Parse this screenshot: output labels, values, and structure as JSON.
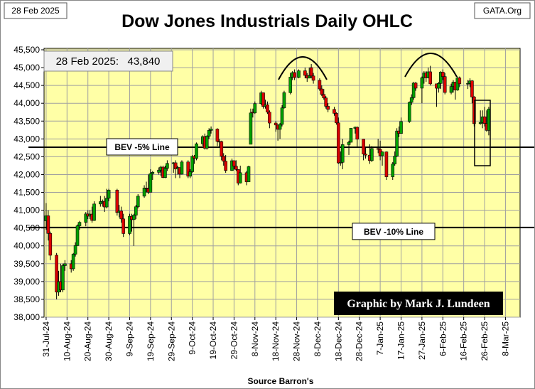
{
  "date": "28 Feb 2025",
  "site": "GATA.Org",
  "chart_data": {
    "type": "candlestick",
    "title": "Dow Jones Industrials Daily OHLC",
    "annotation": "28 Feb 2025:   43,840",
    "credit": "Graphic by Mark J. Lundeen",
    "source": "Source Barron's",
    "up_color": "#00a000",
    "down_color": "#dd0000",
    "grid": true,
    "reference_lines": [
      {
        "label": "BEV -5% Line",
        "value": 42767
      },
      {
        "label": "BEV -10% Line",
        "value": 40516
      }
    ],
    "ylim": [
      38000,
      45500
    ],
    "yticks": [
      {
        "value": 38000,
        "label": "38,000"
      },
      {
        "value": 38500,
        "label": "38,500"
      },
      {
        "value": 39000,
        "label": "39,000"
      },
      {
        "value": 39500,
        "label": "39,500"
      },
      {
        "value": 40000,
        "label": "40,000"
      },
      {
        "value": 40500,
        "label": "40,500"
      },
      {
        "value": 41000,
        "label": "41,000"
      },
      {
        "value": 41500,
        "label": "41,500"
      },
      {
        "value": 42000,
        "label": "42,000"
      },
      {
        "value": 42500,
        "label": "42,500"
      },
      {
        "value": 43000,
        "label": "43,000"
      },
      {
        "value": 43500,
        "label": "43,500"
      },
      {
        "value": 44000,
        "label": "44,000"
      },
      {
        "value": 44500,
        "label": "44,500"
      },
      {
        "value": 45000,
        "label": "45,000"
      },
      {
        "value": 45500,
        "label": "45,500"
      }
    ],
    "xlim": [
      "30-Jul-24",
      "15-Mar-25"
    ],
    "xticks": [
      "31-Jul-24",
      "10-Aug-24",
      "20-Aug-24",
      "30-Aug-24",
      "9-Sep-24",
      "19-Sep-24",
      "29-Sep-24",
      "9-Oct-24",
      "19-Oct-24",
      "29-Oct-24",
      "8-Nov-24",
      "18-Nov-24",
      "28-Nov-24",
      "8-Dec-24",
      "18-Dec-24",
      "28-Dec-24",
      "7-Jan-25",
      "17-Jan-25",
      "27-Jan-25",
      "6-Feb-25",
      "16-Feb-25",
      "26-Feb-25",
      "8-Mar-25"
    ],
    "x": [
      "31-Jul-24",
      "1-Aug-24",
      "2-Aug-24",
      "5-Aug-24",
      "6-Aug-24",
      "7-Aug-24",
      "8-Aug-24",
      "9-Aug-24",
      "12-Aug-24",
      "13-Aug-24",
      "14-Aug-24",
      "15-Aug-24",
      "16-Aug-24",
      "19-Aug-24",
      "20-Aug-24",
      "21-Aug-24",
      "22-Aug-24",
      "23-Aug-24",
      "26-Aug-24",
      "27-Aug-24",
      "28-Aug-24",
      "29-Aug-24",
      "30-Aug-24",
      "3-Sep-24",
      "4-Sep-24",
      "5-Sep-24",
      "6-Sep-24",
      "9-Sep-24",
      "10-Sep-24",
      "11-Sep-24",
      "12-Sep-24",
      "13-Sep-24",
      "16-Sep-24",
      "17-Sep-24",
      "18-Sep-24",
      "19-Sep-24",
      "20-Sep-24",
      "23-Sep-24",
      "24-Sep-24",
      "25-Sep-24",
      "26-Sep-24",
      "27-Sep-24",
      "30-Sep-24",
      "1-Oct-24",
      "2-Oct-24",
      "3-Oct-24",
      "4-Oct-24",
      "7-Oct-24",
      "8-Oct-24",
      "9-Oct-24",
      "10-Oct-24",
      "11-Oct-24",
      "14-Oct-24",
      "15-Oct-24",
      "16-Oct-24",
      "17-Oct-24",
      "18-Oct-24",
      "21-Oct-24",
      "22-Oct-24",
      "23-Oct-24",
      "24-Oct-24",
      "25-Oct-24",
      "28-Oct-24",
      "29-Oct-24",
      "30-Oct-24",
      "31-Oct-24",
      "1-Nov-24",
      "4-Nov-24",
      "5-Nov-24",
      "6-Nov-24",
      "7-Nov-24",
      "8-Nov-24",
      "11-Nov-24",
      "12-Nov-24",
      "13-Nov-24",
      "14-Nov-24",
      "15-Nov-24",
      "18-Nov-24",
      "19-Nov-24",
      "20-Nov-24",
      "21-Nov-24",
      "22-Nov-24",
      "25-Nov-24",
      "26-Nov-24",
      "27-Nov-24",
      "29-Nov-24",
      "2-Dec-24",
      "3-Dec-24",
      "4-Dec-24",
      "5-Dec-24",
      "6-Dec-24",
      "9-Dec-24",
      "10-Dec-24",
      "11-Dec-24",
      "12-Dec-24",
      "13-Dec-24",
      "16-Dec-24",
      "17-Dec-24",
      "18-Dec-24",
      "19-Dec-24",
      "20-Dec-24",
      "23-Dec-24",
      "24-Dec-24",
      "26-Dec-24",
      "27-Dec-24",
      "30-Dec-24",
      "31-Dec-24",
      "2-Jan-25",
      "3-Jan-25",
      "6-Jan-25",
      "7-Jan-25",
      "8-Jan-25",
      "10-Jan-25",
      "13-Jan-25",
      "14-Jan-25",
      "15-Jan-25",
      "16-Jan-25",
      "17-Jan-25",
      "21-Jan-25",
      "22-Jan-25",
      "23-Jan-25",
      "24-Jan-25",
      "27-Jan-25",
      "28-Jan-25",
      "29-Jan-25",
      "30-Jan-25",
      "31-Jan-25",
      "3-Feb-25",
      "4-Feb-25",
      "5-Feb-25",
      "6-Feb-25",
      "7-Feb-25",
      "10-Feb-25",
      "11-Feb-25",
      "12-Feb-25",
      "13-Feb-25",
      "14-Feb-25",
      "18-Feb-25",
      "19-Feb-25",
      "20-Feb-25",
      "21-Feb-25",
      "24-Feb-25",
      "25-Feb-25",
      "26-Feb-25",
      "27-Feb-25",
      "28-Feb-25"
    ],
    "open": [
      40700,
      40843,
      40348,
      39737,
      38703,
      38997,
      38763,
      39446,
      39498,
      39357,
      39766,
      40009,
      40563,
      40660,
      40896,
      40834,
      40890,
      40713,
      41175,
      41240,
      41250,
      41091,
      41335,
      41563,
      40937,
      40975,
      40756,
      40345,
      40830,
      40736,
      40861,
      41097,
      41394,
      41622,
      41606,
      41504,
      42025,
      42063,
      42125,
      42208,
      41915,
      42175,
      42313,
      42330,
      42156,
      42197,
      42012,
      42353,
      41954,
      42080,
      42512,
      42454,
      42864,
      43065,
      42740,
      43077,
      43239,
      43276,
      42931,
      42925,
      42514,
      42374,
      42114,
      42388,
      42234,
      42142,
      41763,
      42052,
      41795,
      42850,
      43750,
      43729,
      43989,
      44293,
      43911,
      43958,
      43751,
      43445,
      43390,
      43269,
      43408,
      43870,
      44297,
      44736,
      44861,
      44722,
      44911,
      44782,
      44706,
      45000,
      44766,
      44643,
      44402,
      44248,
      44149,
      43915,
      43828,
      43718,
      43450,
      42327,
      42343,
      42840,
      42907,
      43297,
      43326,
      42992,
      42574,
      42544,
      42392,
      42732,
      42707,
      42528,
      42636,
      41938,
      42297,
      42518,
      43222,
      43153,
      43488,
      44025,
      44157,
      44566,
      44424,
      44714,
      44850,
      44714,
      44882,
      44545,
      44422,
      44556,
      44873,
      44748,
      44303,
      44470,
      44594,
      44369,
      44711,
      44546,
      44556,
      44628,
      44177,
      43428,
      43461,
      43621,
      43433,
      43240
    ],
    "high": [
      41200,
      41000,
      40400,
      39800,
      39300,
      39500,
      39500,
      39600,
      39600,
      39800,
      40100,
      40600,
      40700,
      40950,
      41000,
      41000,
      41100,
      41250,
      41400,
      41300,
      41400,
      41600,
      41600,
      41600,
      41150,
      41100,
      40900,
      40900,
      40900,
      40900,
      41150,
      41450,
      41700,
      41800,
      42000,
      42150,
      42100,
      42200,
      42250,
      42250,
      42250,
      42400,
      42350,
      42400,
      42250,
      42200,
      42400,
      42400,
      42150,
      42550,
      42550,
      42900,
      43100,
      43150,
      43100,
      43300,
      43350,
      43300,
      43000,
      42950,
      42600,
      42550,
      42450,
      42400,
      42400,
      42150,
      42250,
      42100,
      42250,
      43850,
      43850,
      44050,
      44350,
      44300,
      44100,
      44050,
      43800,
      43500,
      43400,
      43450,
      43950,
      44350,
      44850,
      44900,
      44950,
      44950,
      45000,
      44850,
      45000,
      45100,
      44850,
      44700,
      44500,
      44400,
      44200,
      44000,
      43900,
      43750,
      43600,
      42650,
      43000,
      42950,
      43300,
      43350,
      43350,
      43000,
      42750,
      42850,
      42800,
      43000,
      42950,
      42650,
      42650,
      42350,
      42650,
      43300,
      43350,
      43600,
      44050,
      44250,
      44600,
      44600,
      44750,
      44900,
      44900,
      45000,
      45050,
      44550,
      44600,
      44900,
      44950,
      44850,
      44550,
      44650,
      44600,
      44750,
      44750,
      44650,
      44700,
      44650,
      44200,
      43800,
      43800,
      43900,
      43800,
      43900
    ],
    "low": [
      40450,
      40150,
      39600,
      38500,
      38600,
      38700,
      38700,
      39300,
      39250,
      39300,
      39700,
      40000,
      40450,
      40550,
      40750,
      40750,
      40650,
      40700,
      41100,
      41100,
      40950,
      41050,
      41250,
      40850,
      40800,
      40650,
      40250,
      40300,
      40400,
      40000,
      40750,
      41050,
      41350,
      41500,
      41450,
      41500,
      41850,
      42000,
      41950,
      41900,
      41900,
      42100,
      42050,
      41900,
      42000,
      41900,
      42000,
      41900,
      41900,
      42050,
      42300,
      42400,
      42800,
      42700,
      42700,
      43000,
      43150,
      42800,
      42750,
      42400,
      42250,
      42050,
      42100,
      42150,
      42100,
      41700,
      41750,
      41700,
      41800,
      42850,
      43600,
      43700,
      43950,
      43850,
      43850,
      43700,
      43300,
      43200,
      42950,
      43000,
      43350,
      43850,
      44250,
      44650,
      44650,
      44700,
      44700,
      44600,
      44700,
      44700,
      44550,
      44350,
      44200,
      44100,
      43850,
      43750,
      43650,
      43400,
      42300,
      42250,
      42150,
      42550,
      42900,
      43150,
      42750,
      42400,
      42450,
      42300,
      42350,
      42600,
      42400,
      42250,
      41850,
      41850,
      42250,
      42500,
      43050,
      43150,
      43450,
      43950,
      44100,
      44350,
      44000,
      44550,
      44600,
      44700,
      44500,
      43900,
      44300,
      44400,
      44650,
      44250,
      44250,
      44300,
      44100,
      44350,
      44450,
      44400,
      44450,
      44000,
      43350,
      43400,
      43300,
      43350,
      43200,
      43100
    ],
    "close": [
      40843,
      40348,
      39737,
      38703,
      38997,
      38763,
      39446,
      39498,
      39357,
      39766,
      40009,
      40563,
      40660,
      40896,
      40834,
      40890,
      40713,
      41175,
      41240,
      41250,
      41091,
      41335,
      41563,
      40937,
      40975,
      40756,
      40345,
      40830,
      40736,
      40861,
      41097,
      41394,
      41622,
      41606,
      41504,
      42025,
      42063,
      42125,
      42208,
      41915,
      42175,
      42313,
      42330,
      42156,
      42197,
      42012,
      42353,
      41954,
      42080,
      42512,
      42454,
      42864,
      43065,
      42740,
      43077,
      43239,
      43276,
      42931,
      42925,
      42514,
      42374,
      42114,
      42388,
      42234,
      42142,
      41763,
      42052,
      41795,
      42222,
      43729,
      43729,
      43989,
      44293,
      43911,
      43958,
      43751,
      43445,
      43390,
      43269,
      43408,
      43870,
      44297,
      44736,
      44861,
      44722,
      44911,
      44782,
      44706,
      44765,
      44766,
      44643,
      44402,
      44248,
      44149,
      43915,
      43828,
      43718,
      43450,
      42327,
      42343,
      42840,
      42907,
      43297,
      43326,
      42992,
      42574,
      42544,
      42392,
      42732,
      42707,
      42528,
      42636,
      41938,
      42297,
      42518,
      43222,
      43153,
      43488,
      44025,
      44157,
      44566,
      44424,
      44714,
      44850,
      44714,
      44882,
      44545,
      44422,
      44556,
      44873,
      44748,
      44303,
      44470,
      44594,
      44369,
      44711,
      44546,
      44556,
      44628,
      44177,
      43428,
      43461,
      43621,
      43433,
      43240,
      43840
    ]
  }
}
